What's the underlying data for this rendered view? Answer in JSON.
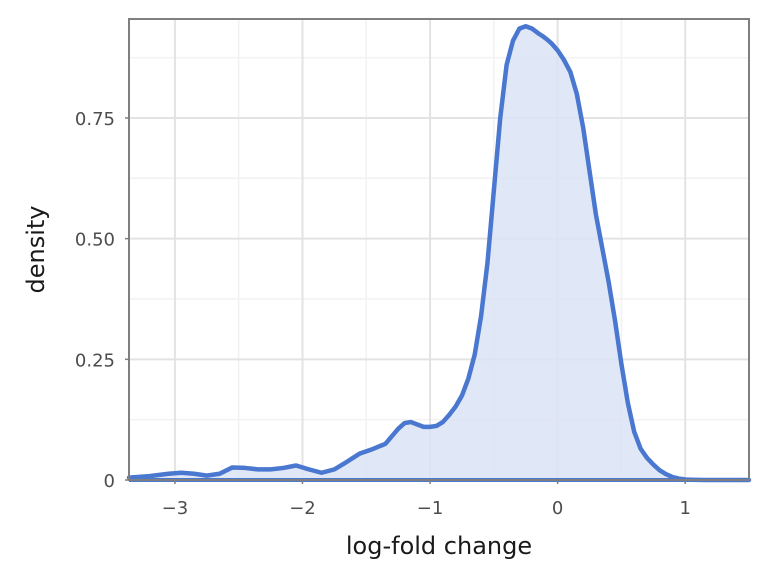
{
  "chart_data": {
    "type": "area",
    "title": "",
    "xlabel": "log-fold change",
    "ylabel": "density",
    "xlim": [
      -3.36,
      1.5
    ],
    "ylim": [
      0,
      0.955
    ],
    "grid": true,
    "legend": "none",
    "x_ticks": [
      {
        "value": -3,
        "label": "−3"
      },
      {
        "value": -2,
        "label": "−2"
      },
      {
        "value": -1,
        "label": "−1"
      },
      {
        "value": 0,
        "label": "0"
      },
      {
        "value": 1,
        "label": "1"
      }
    ],
    "y_ticks": [
      {
        "value": 0,
        "label": "0"
      },
      {
        "value": 0.25,
        "label": "0.25"
      },
      {
        "value": 0.5,
        "label": "0.50"
      },
      {
        "value": 0.75,
        "label": "0.75"
      }
    ],
    "series": [
      {
        "color": "#4a77cf",
        "fill": "#dae3f5",
        "x": [
          -3.36,
          -3.2,
          -3.05,
          -2.95,
          -2.85,
          -2.75,
          -2.65,
          -2.55,
          -2.45,
          -2.35,
          -2.25,
          -2.15,
          -2.05,
          -1.95,
          -1.85,
          -1.75,
          -1.65,
          -1.55,
          -1.45,
          -1.35,
          -1.25,
          -1.2,
          -1.15,
          -1.1,
          -1.05,
          -1.0,
          -0.95,
          -0.9,
          -0.85,
          -0.8,
          -0.75,
          -0.7,
          -0.65,
          -0.6,
          -0.55,
          -0.5,
          -0.45,
          -0.4,
          -0.35,
          -0.3,
          -0.25,
          -0.2,
          -0.15,
          -0.12,
          -0.1,
          -0.08,
          -0.05,
          0.0,
          0.05,
          0.1,
          0.15,
          0.2,
          0.25,
          0.3,
          0.35,
          0.4,
          0.45,
          0.5,
          0.55,
          0.6,
          0.65,
          0.7,
          0.75,
          0.8,
          0.85,
          0.9,
          0.95,
          1.0,
          1.05,
          1.1,
          1.15,
          1.2,
          1.3,
          1.4,
          1.5
        ],
        "y": [
          0.005,
          0.008,
          0.013,
          0.015,
          0.013,
          0.009,
          0.013,
          0.026,
          0.025,
          0.022,
          0.022,
          0.025,
          0.03,
          0.022,
          0.015,
          0.022,
          0.038,
          0.055,
          0.064,
          0.075,
          0.106,
          0.118,
          0.12,
          0.115,
          0.11,
          0.11,
          0.112,
          0.12,
          0.135,
          0.152,
          0.175,
          0.21,
          0.26,
          0.34,
          0.45,
          0.6,
          0.75,
          0.86,
          0.91,
          0.935,
          0.94,
          0.935,
          0.925,
          0.92,
          0.916,
          0.912,
          0.905,
          0.89,
          0.87,
          0.845,
          0.8,
          0.73,
          0.64,
          0.55,
          0.48,
          0.41,
          0.33,
          0.24,
          0.16,
          0.1,
          0.065,
          0.046,
          0.032,
          0.02,
          0.012,
          0.006,
          0.003,
          0.001,
          0.0005,
          0.0002,
          0.0001,
          0.0001,
          0.0001,
          0.0001,
          0.0001
        ]
      }
    ]
  }
}
